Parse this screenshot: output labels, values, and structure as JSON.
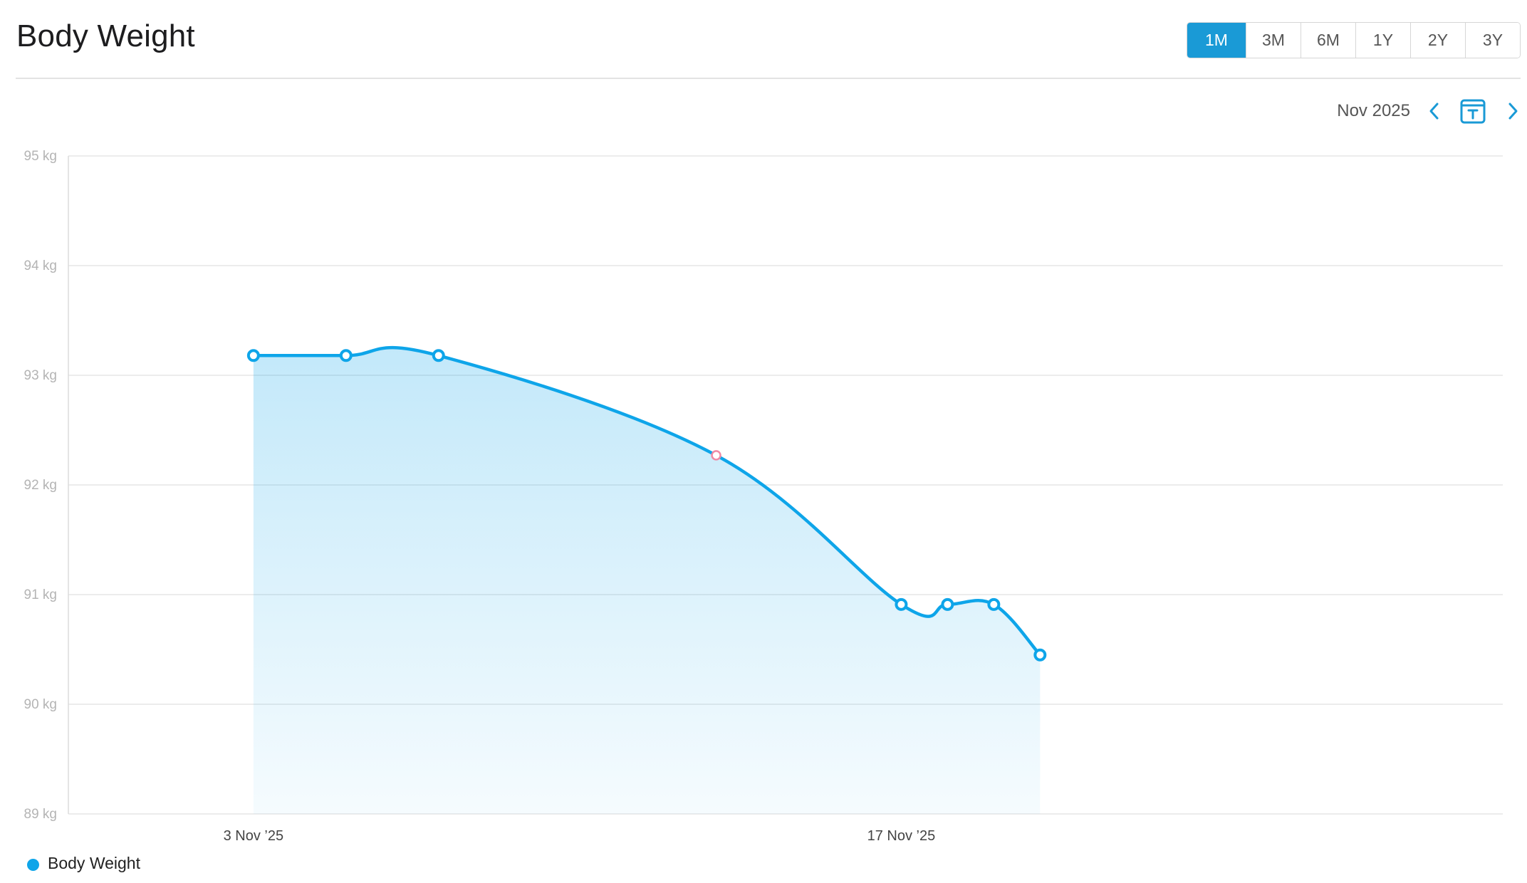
{
  "header": {
    "title": "Body Weight",
    "ranges": [
      "1M",
      "3M",
      "6M",
      "1Y",
      "2Y",
      "3Y"
    ],
    "active_range": "1M"
  },
  "month_nav": {
    "label": "Nov 2025",
    "prev_icon": "chevron-left-icon",
    "today_icon": "calendar-today-icon",
    "next_icon": "chevron-right-icon"
  },
  "colors": {
    "accent": "#1a9ad6",
    "line": "#0ea5e9",
    "highlight_point": "#f08aa5"
  },
  "chart_data": {
    "type": "area",
    "x_axis_type": "date",
    "xlim": [
      "2025-10-30",
      "2025-11-30"
    ],
    "ylim": [
      89,
      95
    ],
    "yticks": [
      89,
      90,
      91,
      92,
      93,
      94,
      95
    ],
    "ytick_labels": [
      "89 kg",
      "90 kg",
      "91 kg",
      "92 kg",
      "93 kg",
      "94 kg",
      "95 kg"
    ],
    "xticks": [
      "2025-11-03",
      "2025-11-17"
    ],
    "xtick_labels": [
      "3 Nov ’25",
      "17 Nov ’25"
    ],
    "grid": true,
    "legend_position": "bottom-left",
    "series": [
      {
        "name": "Body Weight",
        "x": [
          "2025-11-03",
          "2025-11-05",
          "2025-11-07",
          "2025-11-13",
          "2025-11-17",
          "2025-11-18",
          "2025-11-19",
          "2025-11-20"
        ],
        "y": [
          93.18,
          93.18,
          93.18,
          92.27,
          90.91,
          90.91,
          90.91,
          90.45
        ],
        "highlight_x": "2025-11-13"
      }
    ]
  }
}
